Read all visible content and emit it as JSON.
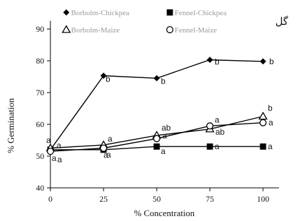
{
  "chart_data": {
    "type": "line",
    "corner_label": "گل",
    "xlabel": "% Concentration",
    "ylabel": "% Germination",
    "x": [
      0,
      25,
      50,
      75,
      100
    ],
    "x_ticks": [
      0,
      25,
      50,
      75,
      100
    ],
    "xlim": [
      0,
      100
    ],
    "ylim": [
      40,
      90
    ],
    "y_ticks": [
      40,
      50,
      60,
      70,
      80,
      90
    ],
    "grid": false,
    "legend_position": "top",
    "series": [
      {
        "name": "Borbolm-Chickpea",
        "marker": "filled-diamond",
        "color": "#000000",
        "values": [
          52,
          75.3,
          74.5,
          80.3,
          79.8
        ],
        "labels": [
          "a",
          "b",
          "b",
          "b",
          "b"
        ]
      },
      {
        "name": "Fennel-Chickpea",
        "marker": "filled-square",
        "color": "#000000",
        "values": [
          52,
          52,
          53,
          53,
          53
        ],
        "labels": [
          "a",
          "a",
          "a",
          "a",
          "a"
        ]
      },
      {
        "name": "Borbolm-Maize",
        "marker": "open-triangle",
        "color": "#000000",
        "values": [
          52.5,
          53.5,
          56.5,
          58.5,
          62.5
        ],
        "labels": [
          "a",
          "a",
          "ab",
          "ab",
          "b"
        ]
      },
      {
        "name": "Fennel-Maize",
        "marker": "open-circle",
        "color": "#000000",
        "values": [
          51.5,
          52.5,
          55.5,
          59.5,
          60.5
        ],
        "labels": [
          "a",
          "a",
          "a",
          "a",
          "a"
        ]
      }
    ]
  }
}
